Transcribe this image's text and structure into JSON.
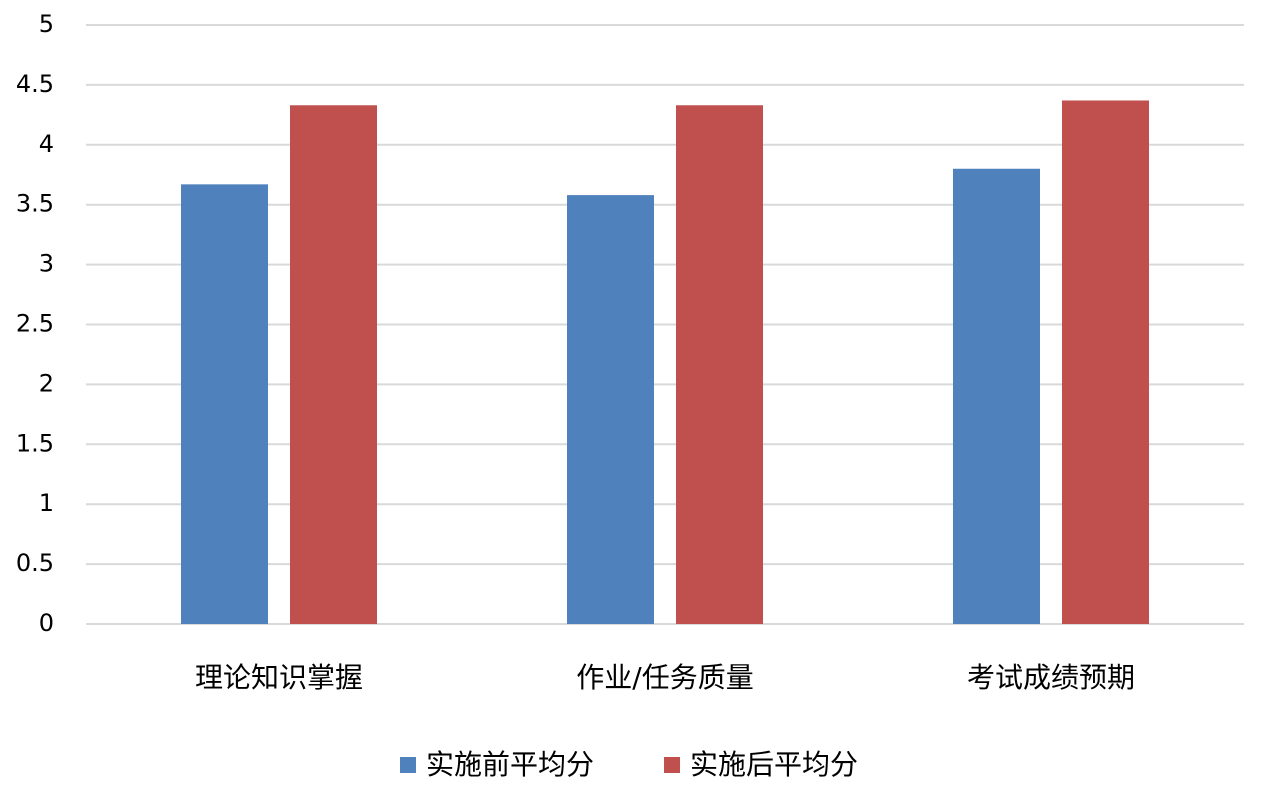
{
  "chart_data": {
    "type": "bar",
    "categories": [
      "理论知识掌握",
      "作业/任务质量",
      "考试成绩预期"
    ],
    "series": [
      {
        "name": "实施前平均分",
        "color": "#4f81bd",
        "values": [
          3.67,
          3.58,
          3.8
        ]
      },
      {
        "name": "实施后平均分",
        "color": "#c0504d",
        "values": [
          4.33,
          4.33,
          4.37
        ]
      }
    ],
    "ylim": [
      0,
      5
    ],
    "yticks": [
      0,
      0.5,
      1,
      1.5,
      2,
      2.5,
      3,
      3.5,
      4,
      4.5,
      5
    ],
    "grid": true,
    "legend": "bottom"
  }
}
